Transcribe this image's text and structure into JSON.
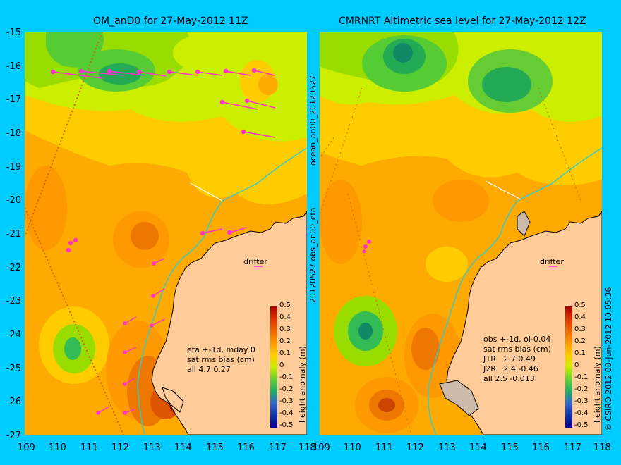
{
  "left_panel": {
    "title": "OM_anD0 for 27-May-2012 11Z",
    "drifter_label": "drifter",
    "note_lines": [
      "eta +-1d, mday 0",
      "sat rms bias (cm)",
      "all 4.7 0.27"
    ]
  },
  "right_panel": {
    "title": "CMRNRT Altimetric sea level  for 27-May-2012 12Z",
    "drifter_label": "drifter",
    "note_lines": [
      "obs +-1d, oi-0.04",
      "sat rms bias (cm)",
      "J1R   2.7 0.49",
      "J2R   2.4 -0.46",
      "all 2.5 -0.013"
    ]
  },
  "y_ticks": [
    "-15",
    "-16",
    "-17",
    "-18",
    "-19",
    "-20",
    "-21",
    "-22",
    "-23",
    "-24",
    "-25",
    "-26",
    "-27"
  ],
  "x_ticks": [
    "109",
    "110",
    "111",
    "112",
    "113",
    "114",
    "115",
    "116",
    "117",
    "118"
  ],
  "middle_label_top": "ocean_an00_20120527",
  "middle_label_bottom": "20120527 obs_an00_eta",
  "colorbar": {
    "label": "height anomaly (m)",
    "ticks": [
      "0.5",
      "0.4",
      "0.3",
      "0.2",
      "0.1",
      "0",
      "-0.1",
      "-0.2",
      "-0.3",
      "-0.4",
      "-0.5"
    ]
  },
  "credit": "© CSIRO 2012   08-Jun-2012 10:05:36",
  "colors": {
    "background": "#00ccff",
    "land": "#ffcc99",
    "arrow": "#ff33cc",
    "coast_line": "#33cccc"
  }
}
